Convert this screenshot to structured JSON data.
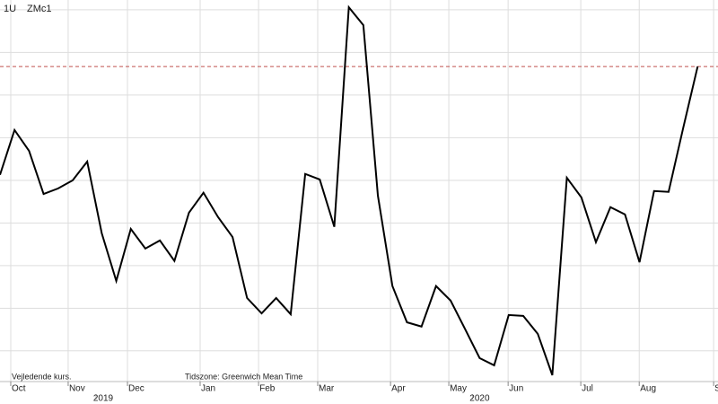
{
  "chart_data": {
    "type": "line",
    "ticker": "1U",
    "symbol": "ZMc1",
    "footnote": "Vejledende kurs.",
    "timezone": "Tidszone: Greenwich Mean Time",
    "year_labels": [
      {
        "value": 7.1,
        "label": "2019"
      },
      {
        "value": 33.0,
        "label": "2020"
      }
    ],
    "x": [
      0,
      1,
      2,
      3,
      4,
      5,
      6,
      7,
      8,
      9,
      10,
      11,
      12,
      13,
      14,
      15,
      16,
      17,
      18,
      19,
      20,
      21,
      22,
      23,
      24,
      25,
      26,
      27,
      28,
      29,
      30,
      31,
      32,
      33,
      34,
      35,
      36,
      37,
      38,
      39,
      40,
      41,
      42,
      43,
      44,
      45,
      46,
      47,
      48
    ],
    "series": [
      {
        "name": "ZMc1",
        "color": "#000000",
        "values": [
          5.13,
          6.18,
          5.69,
          4.68,
          4.81,
          5.0,
          5.44,
          3.76,
          2.64,
          3.86,
          3.4,
          3.59,
          3.11,
          4.24,
          4.71,
          4.14,
          3.67,
          2.24,
          1.88,
          2.24,
          1.86,
          5.15,
          5.02,
          3.91,
          9.06,
          8.64,
          4.64,
          2.52,
          1.67,
          1.57,
          2.52,
          2.18,
          1.51,
          0.83,
          0.66,
          1.84,
          1.82,
          1.4,
          0.43,
          5.06,
          4.6,
          3.55,
          4.37,
          4.2,
          3.08,
          4.75,
          4.73,
          6.22,
          7.67
        ]
      }
    ],
    "reference_line": {
      "value": 7.67,
      "color": "#c0504d"
    },
    "xlim": [
      0,
      49.4
    ],
    "xticks": [
      {
        "value": 0.74,
        "label": "Oct"
      },
      {
        "value": 4.69,
        "label": "Nov"
      },
      {
        "value": 8.77,
        "label": "Dec"
      },
      {
        "value": 13.77,
        "label": "Jan"
      },
      {
        "value": 17.79,
        "label": "Feb"
      },
      {
        "value": 21.86,
        "label": "Mar"
      },
      {
        "value": 26.87,
        "label": "Apr"
      },
      {
        "value": 30.88,
        "label": "May"
      },
      {
        "value": 34.96,
        "label": "Jun"
      },
      {
        "value": 39.96,
        "label": "Jul"
      },
      {
        "value": 43.98,
        "label": "Aug"
      },
      {
        "value": 49.1,
        "label": "S"
      }
    ],
    "ylim": [
      0.28,
      9.23
    ],
    "yticks": [
      1,
      2,
      3,
      4,
      5,
      6,
      7,
      8,
      9
    ],
    "grid": true
  }
}
